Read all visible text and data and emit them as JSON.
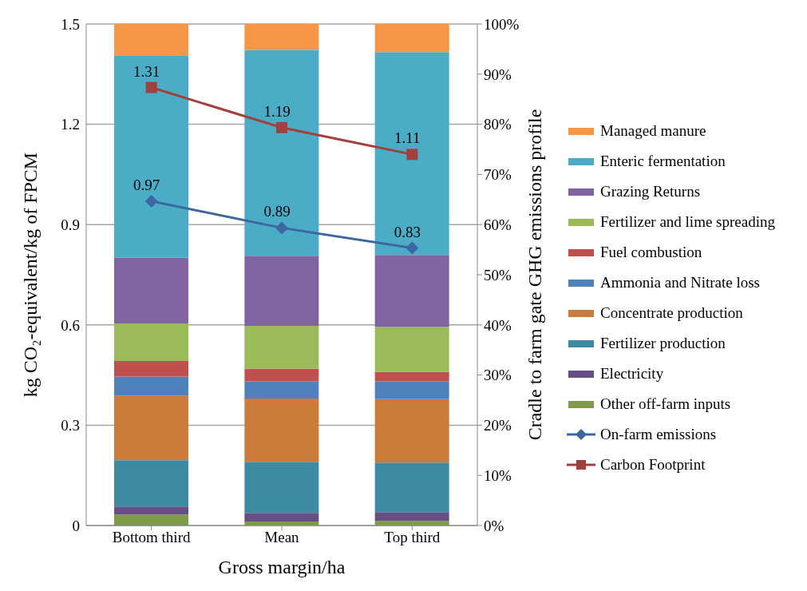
{
  "chart_data": {
    "type": "bar",
    "stacked": true,
    "categories": [
      "Bottom third",
      "Mean",
      "Top third"
    ],
    "xlabel": "Gross margin/ha",
    "ylabel": "kg CO₂-equivalent/kg of FPCM",
    "y2label": "Cradle to farm gate GHG emissions profile",
    "ylim": [
      0,
      1.5
    ],
    "yticks": [
      0,
      0.3,
      0.6,
      0.9,
      1.2,
      1.5
    ],
    "y2lim": [
      0,
      100
    ],
    "y2ticks": [
      {
        "value": 0,
        "label": "0%"
      },
      {
        "value": 10,
        "label": "10%"
      },
      {
        "value": 20,
        "label": "20%"
      },
      {
        "value": 30,
        "label": "30%"
      },
      {
        "value": 40,
        "label": "40%"
      },
      {
        "value": 50,
        "label": "50%"
      },
      {
        "value": 60,
        "label": "60%"
      },
      {
        "value": 70,
        "label": "70%"
      },
      {
        "value": 80,
        "label": "80%"
      },
      {
        "value": 90,
        "label": "90%"
      },
      {
        "value": 100,
        "label": "100%"
      }
    ],
    "grid": "y",
    "legend": "right",
    "series": [
      {
        "name": "Other off-farm inputs",
        "color": "#7f9a48",
        "axis": "y2",
        "values": [
          2.2,
          0.8,
          0.9
        ]
      },
      {
        "name": "Electricity",
        "color": "#674f84",
        "axis": "y2",
        "values": [
          1.6,
          1.7,
          1.75
        ]
      },
      {
        "name": "Fertilizer production",
        "color": "#3d8ba3",
        "axis": "y2",
        "values": [
          9.2,
          10.2,
          9.9
        ]
      },
      {
        "name": "Concentrate production",
        "color": "#cb7b3a",
        "axis": "y2",
        "values": [
          12.9,
          12.6,
          12.65
        ]
      },
      {
        "name": "Ammonia and Nitrate loss",
        "color": "#4f81bd",
        "axis": "y2",
        "values": [
          3.8,
          3.45,
          3.55
        ]
      },
      {
        "name": "Fuel combustion",
        "color": "#c0504d",
        "axis": "y2",
        "values": [
          3.1,
          2.5,
          1.85
        ]
      },
      {
        "name": "Fertilizer and lime spreading",
        "color": "#9bbb59",
        "axis": "y2",
        "values": [
          7.5,
          8.55,
          9.0
        ]
      },
      {
        "name": "Grazing Returns",
        "color": "#8064a2",
        "axis": "y2",
        "values": [
          13.1,
          14.0,
          14.35
        ]
      },
      {
        "name": "Enteric fermentation",
        "color": "#4bacc6",
        "axis": "y2",
        "values": [
          40.35,
          41.0,
          40.45
        ]
      },
      {
        "name": "Managed manure",
        "color": "#f79646",
        "axis": "y2",
        "values": [
          6.25,
          5.2,
          5.6
        ]
      },
      {
        "name": "On-farm emissions",
        "type": "line",
        "color": "#3e66a0",
        "axis": "y",
        "marker": "diamond",
        "line_style": "solid",
        "values": [
          0.97,
          0.89,
          0.83
        ],
        "value_labels": [
          "0.97",
          "0.89",
          "0.83"
        ]
      },
      {
        "name": "Carbon Footprint",
        "type": "line",
        "color": "#a3403d",
        "axis": "y",
        "marker": "square",
        "line_style": "solid",
        "values": [
          1.31,
          1.19,
          1.11
        ],
        "value_labels": [
          "1.31",
          "1.19",
          "1.11"
        ]
      }
    ]
  }
}
